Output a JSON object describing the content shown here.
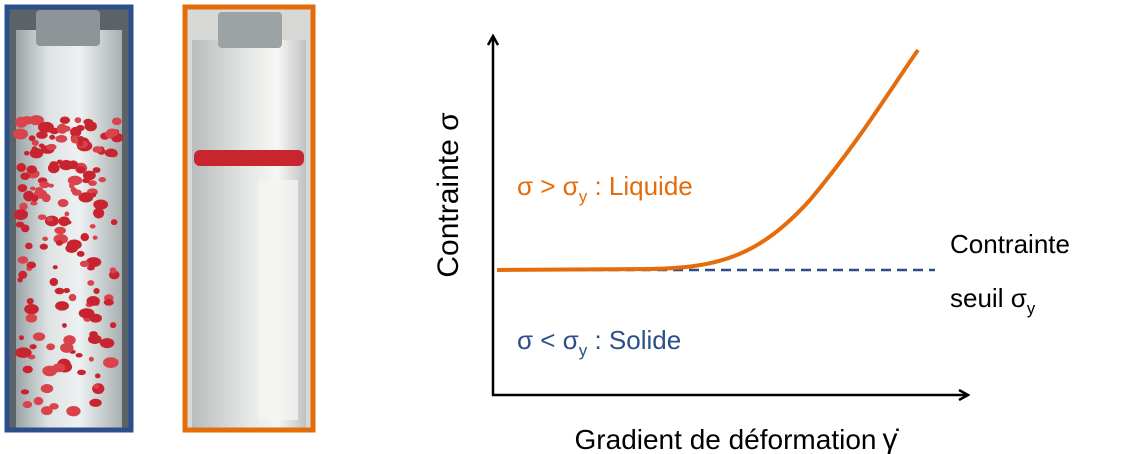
{
  "axis_labels": {
    "y": "Contrainte σ",
    "x": "Gradient de déformation",
    "x_symbol": "γ̇"
  },
  "regions": {
    "liquid": {
      "text": "σ > σ",
      "subscript": "y",
      "suffix": " : Liquide"
    },
    "solid": {
      "text": "σ < σ",
      "subscript": "y",
      "suffix": " : Solide"
    }
  },
  "threshold": {
    "line1": "Contrainte",
    "line2": "seuil σ",
    "subscript": "y"
  }
}
